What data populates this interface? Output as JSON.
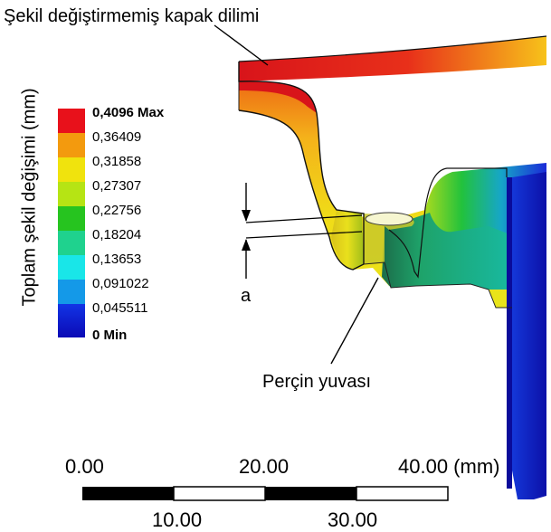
{
  "annotations": {
    "undeformed_slice": "Şekil değiştirmemiş kapak dilimi",
    "rivet_socket": "Perçin yuvası",
    "dimension_a": "a"
  },
  "legend": {
    "title": "Toplam şekil değişimi (mm)",
    "entries": [
      {
        "label": "0,4096 Max",
        "color": "#e8111b",
        "bold": true
      },
      {
        "label": "0,36409",
        "color": "#f39a0e",
        "bold": false
      },
      {
        "label": "0,31858",
        "color": "#f0e30d",
        "bold": false
      },
      {
        "label": "0,27307",
        "color": "#b6e414",
        "bold": false
      },
      {
        "label": "0,22756",
        "color": "#26c41f",
        "bold": false
      },
      {
        "label": "0,18204",
        "color": "#1fd28e",
        "bold": false
      },
      {
        "label": "0,13653",
        "color": "#19e6e8",
        "bold": false
      },
      {
        "label": "0,091022",
        "color": "#1499e8",
        "bold": false
      },
      {
        "label": "0,045511",
        "color": "#1234e6",
        "bold": false
      },
      {
        "label": "0 Min",
        "color": "#0b0ab5",
        "bold": true
      }
    ]
  },
  "scale_bar": {
    "top_labels": [
      "0.00",
      "20.00",
      "40.00 (mm)"
    ],
    "bottom_labels": [
      "10.00",
      "30.00"
    ]
  }
}
